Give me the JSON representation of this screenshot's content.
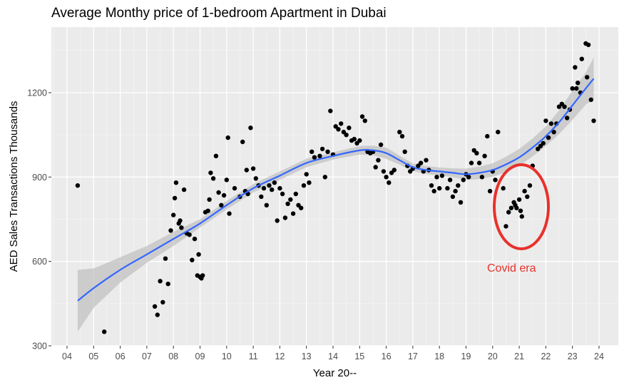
{
  "chart": {
    "title": "Average Monthy price of 1-bedroom Apartment in Dubai",
    "xlabel": "Year 20--",
    "ylabel": "AED Sales Transactions Thousands",
    "x_ticks": [
      "04",
      "05",
      "06",
      "07",
      "08",
      "09",
      "10",
      "11",
      "12",
      "13",
      "14",
      "15",
      "16",
      "17",
      "18",
      "19",
      "20",
      "21",
      "22",
      "23",
      "24"
    ],
    "y_ticks": [
      "300",
      "600",
      "900",
      "1200"
    ],
    "annotation": "Covid era"
  },
  "colors": {
    "panel": "#ebebeb",
    "grid_major": "#ffffff",
    "grid_minor": "#f5f5f5",
    "smooth_line": "#3366ff",
    "ribbon": "#bfbfbf",
    "points": "#000000",
    "annotation": "#e8312b"
  },
  "chart_data": {
    "type": "scatter",
    "title": "Average Monthy price of 1-bedroom Apartment in Dubai",
    "xlabel": "Year 20--",
    "ylabel": "AED Sales Transactions Thousands",
    "xlim": [
      3.5,
      24.4
    ],
    "ylim": [
      300,
      1390
    ],
    "grid": true,
    "points": [
      [
        4.4,
        870
      ],
      [
        5.4,
        350
      ],
      [
        7.3,
        440
      ],
      [
        7.4,
        410
      ],
      [
        7.5,
        530
      ],
      [
        7.6,
        455
      ],
      [
        7.7,
        610
      ],
      [
        7.8,
        520
      ],
      [
        7.9,
        710
      ],
      [
        8.0,
        765
      ],
      [
        8.05,
        825
      ],
      [
        8.1,
        880
      ],
      [
        8.2,
        735
      ],
      [
        8.25,
        745
      ],
      [
        8.3,
        720
      ],
      [
        8.4,
        855
      ],
      [
        8.5,
        700
      ],
      [
        8.6,
        695
      ],
      [
        8.7,
        605
      ],
      [
        8.8,
        680
      ],
      [
        8.9,
        550
      ],
      [
        8.95,
        625
      ],
      [
        9.0,
        545
      ],
      [
        9.05,
        540
      ],
      [
        9.1,
        550
      ],
      [
        9.2,
        775
      ],
      [
        9.3,
        780
      ],
      [
        9.35,
        820
      ],
      [
        9.4,
        915
      ],
      [
        9.5,
        895
      ],
      [
        9.6,
        975
      ],
      [
        9.7,
        845
      ],
      [
        9.8,
        800
      ],
      [
        9.9,
        835
      ],
      [
        10.0,
        890
      ],
      [
        10.05,
        1040
      ],
      [
        10.1,
        770
      ],
      [
        10.3,
        860
      ],
      [
        10.5,
        830
      ],
      [
        10.6,
        1025
      ],
      [
        10.7,
        850
      ],
      [
        10.75,
        925
      ],
      [
        10.8,
        840
      ],
      [
        10.9,
        1075
      ],
      [
        11.0,
        930
      ],
      [
        11.1,
        895
      ],
      [
        11.2,
        870
      ],
      [
        11.3,
        830
      ],
      [
        11.4,
        860
      ],
      [
        11.5,
        800
      ],
      [
        11.6,
        870
      ],
      [
        11.7,
        855
      ],
      [
        11.8,
        880
      ],
      [
        11.9,
        745
      ],
      [
        12.0,
        860
      ],
      [
        12.1,
        840
      ],
      [
        12.2,
        755
      ],
      [
        12.3,
        805
      ],
      [
        12.4,
        820
      ],
      [
        12.5,
        770
      ],
      [
        12.6,
        840
      ],
      [
        12.7,
        800
      ],
      [
        12.8,
        790
      ],
      [
        12.9,
        870
      ],
      [
        13.0,
        910
      ],
      [
        13.1,
        880
      ],
      [
        13.2,
        990
      ],
      [
        13.3,
        970
      ],
      [
        13.5,
        975
      ],
      [
        13.6,
        1000
      ],
      [
        13.7,
        900
      ],
      [
        13.8,
        990
      ],
      [
        13.9,
        1135
      ],
      [
        14.0,
        980
      ],
      [
        14.1,
        1080
      ],
      [
        14.2,
        1070
      ],
      [
        14.3,
        1090
      ],
      [
        14.4,
        1060
      ],
      [
        14.5,
        1050
      ],
      [
        14.6,
        1075
      ],
      [
        14.7,
        1030
      ],
      [
        14.8,
        1035
      ],
      [
        14.9,
        1020
      ],
      [
        15.0,
        1030
      ],
      [
        15.1,
        1115
      ],
      [
        15.2,
        1100
      ],
      [
        15.3,
        990
      ],
      [
        15.4,
        985
      ],
      [
        15.5,
        990
      ],
      [
        15.6,
        935
      ],
      [
        15.7,
        960
      ],
      [
        15.8,
        1015
      ],
      [
        15.9,
        920
      ],
      [
        16.0,
        900
      ],
      [
        16.1,
        880
      ],
      [
        16.2,
        915
      ],
      [
        16.3,
        925
      ],
      [
        16.5,
        1060
      ],
      [
        16.6,
        1045
      ],
      [
        16.7,
        990
      ],
      [
        16.8,
        940
      ],
      [
        16.9,
        920
      ],
      [
        17.0,
        930
      ],
      [
        17.2,
        940
      ],
      [
        17.3,
        950
      ],
      [
        17.4,
        920
      ],
      [
        17.5,
        960
      ],
      [
        17.6,
        925
      ],
      [
        17.7,
        870
      ],
      [
        17.8,
        850
      ],
      [
        17.9,
        900
      ],
      [
        18.0,
        860
      ],
      [
        18.1,
        905
      ],
      [
        18.3,
        860
      ],
      [
        18.4,
        890
      ],
      [
        18.5,
        830
      ],
      [
        18.6,
        850
      ],
      [
        18.7,
        870
      ],
      [
        18.8,
        810
      ],
      [
        18.9,
        890
      ],
      [
        19.0,
        910
      ],
      [
        19.1,
        900
      ],
      [
        19.2,
        950
      ],
      [
        19.3,
        995
      ],
      [
        19.4,
        985
      ],
      [
        19.5,
        950
      ],
      [
        19.6,
        900
      ],
      [
        19.7,
        975
      ],
      [
        19.8,
        1045
      ],
      [
        19.9,
        850
      ],
      [
        20.0,
        920
      ],
      [
        20.1,
        890
      ],
      [
        20.2,
        1060
      ],
      [
        20.4,
        860
      ],
      [
        20.5,
        725
      ],
      [
        20.6,
        775
      ],
      [
        20.7,
        790
      ],
      [
        20.8,
        810
      ],
      [
        20.85,
        800
      ],
      [
        20.9,
        790
      ],
      [
        21.0,
        820
      ],
      [
        21.05,
        780
      ],
      [
        21.1,
        760
      ],
      [
        21.2,
        850
      ],
      [
        21.3,
        830
      ],
      [
        21.4,
        870
      ],
      [
        21.5,
        940
      ],
      [
        21.7,
        1000
      ],
      [
        21.8,
        1010
      ],
      [
        21.9,
        1020
      ],
      [
        22.0,
        1100
      ],
      [
        22.1,
        1040
      ],
      [
        22.2,
        1090
      ],
      [
        22.3,
        1060
      ],
      [
        22.4,
        1090
      ],
      [
        22.5,
        1150
      ],
      [
        22.6,
        1160
      ],
      [
        22.7,
        1150
      ],
      [
        22.8,
        1110
      ],
      [
        22.9,
        1140
      ],
      [
        23.0,
        1215
      ],
      [
        23.1,
        1290
      ],
      [
        23.15,
        1215
      ],
      [
        23.2,
        1235
      ],
      [
        23.3,
        1200
      ],
      [
        23.35,
        1320
      ],
      [
        23.5,
        1375
      ],
      [
        23.55,
        1255
      ],
      [
        23.6,
        1370
      ],
      [
        23.7,
        1175
      ],
      [
        23.8,
        1100
      ]
    ],
    "smooth_fit": {
      "x": [
        4.4,
        5.0,
        6.0,
        7.0,
        8.0,
        9.0,
        10.0,
        11.0,
        12.0,
        13.0,
        14.0,
        15.0,
        15.5,
        16.0,
        16.5,
        17.0,
        17.5,
        18.0,
        18.5,
        19.0,
        19.5,
        20.0,
        20.5,
        21.0,
        21.5,
        22.0,
        22.5,
        23.0,
        23.5,
        23.8
      ],
      "y": [
        460,
        505,
        570,
        625,
        680,
        735,
        800,
        860,
        905,
        950,
        975,
        995,
        995,
        985,
        960,
        935,
        925,
        920,
        915,
        910,
        915,
        925,
        945,
        970,
        1005,
        1045,
        1095,
        1155,
        1215,
        1250
      ],
      "ci_lower": [
        350,
        435,
        525,
        595,
        655,
        720,
        785,
        845,
        890,
        935,
        962,
        980,
        978,
        965,
        944,
        922,
        911,
        906,
        899,
        890,
        893,
        901,
        918,
        940,
        973,
        1010,
        1053,
        1103,
        1158,
        1175
      ],
      "ci_upper": [
        570,
        575,
        615,
        655,
        705,
        750,
        815,
        875,
        920,
        965,
        988,
        1010,
        1012,
        1005,
        976,
        948,
        939,
        934,
        931,
        930,
        937,
        949,
        972,
        1000,
        1037,
        1080,
        1137,
        1207,
        1272,
        1325
      ]
    }
  }
}
